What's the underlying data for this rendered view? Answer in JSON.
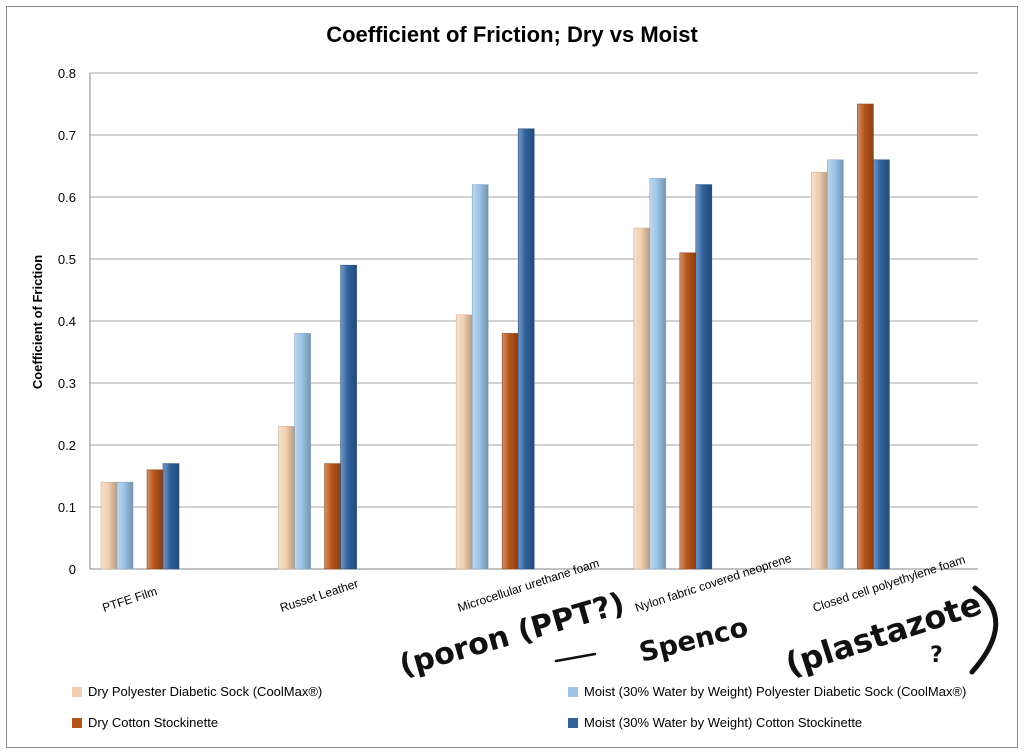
{
  "chart_data": {
    "type": "bar",
    "title": "Coefficient of Friction; Dry vs Moist",
    "ylabel": "Coefficient of Friction",
    "xlabel": "",
    "ylim": [
      0,
      0.8
    ],
    "yticks": [
      "0",
      "0.1",
      "0.2",
      "0.3",
      "0.4",
      "0.5",
      "0.6",
      "0.7",
      "0.8"
    ],
    "grid": true,
    "legend_position": "bottom",
    "categories": [
      "PTFE Film",
      "Russet Leather",
      "Microcellular urethane foam",
      "Nylon fabric covered neoprene",
      "Closed cell polyethylene foam"
    ],
    "series": [
      {
        "name": "Dry Polyester Diabetic Sock (CoolMax®)",
        "color": "#f2cfb0",
        "values": [
          0.14,
          0.23,
          0.41,
          0.55,
          0.64
        ]
      },
      {
        "name": "Moist (30% Water by Weight) Polyester Diabetic Sock (CoolMax®)",
        "color": "#9dc3e6",
        "values": [
          0.14,
          0.38,
          0.62,
          0.63,
          0.66
        ]
      },
      {
        "name": "Dry Cotton Stockinette",
        "color": "#b5541a",
        "values": [
          0.16,
          0.17,
          0.38,
          0.51,
          0.75
        ]
      },
      {
        "name": "Moist (30% Water by Weight) Cotton Stockinette",
        "color": "#30619d",
        "values": [
          0.17,
          0.49,
          0.71,
          0.62,
          0.66
        ]
      }
    ],
    "annotations": [
      "(poron (PPT?)",
      "Spenco",
      "(plastazote",
      "?"
    ]
  }
}
